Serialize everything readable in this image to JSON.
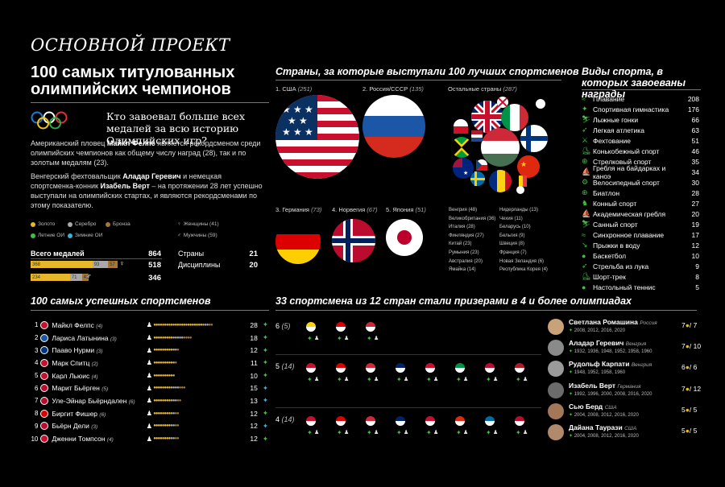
{
  "project": "ОСНОВНОЙ ПРОЕКТ",
  "title": "100 самых титулованных олимпийских чемпионов",
  "question": "Кто завоевал больше всех медалей за всю историю Олимпийских игр?",
  "intro": {
    "p1_a": "Американский пловец ",
    "p1_b": "Майкл Фелпс",
    "p1_c": " является рекордсменом среди олимпийских чемпионов как общему числу наград (28), так и по золотым медалям (23).",
    "p2_a": "Венгерский фехтовальщик ",
    "p2_b": "Аладар Геревич",
    "p2_c": " и немецкая спортсменка-конник ",
    "p2_d": "Изабель Верт",
    "p2_e": " – на протяжении 28 лет успешно выступали на олимпийских стартах, и являются рекордсменами по этому показателю."
  },
  "legend": {
    "gold": "Золото",
    "silver": "Серебро",
    "bronze": "Бронза",
    "women": "Женщины (41)",
    "summer": "Летние ОИ",
    "winter": "Зимние ОИ",
    "men": "Мужчины (59)"
  },
  "stats": {
    "total_label": "Всего медалей",
    "total": "864",
    "bar1": {
      "gold": "368",
      "silver": "93",
      "bronze": "57",
      "gold_n": 368,
      "silver_n": 93,
      "bronze_n": 57
    },
    "bar1_total": "518",
    "bar2": {
      "gold": "234",
      "silver": "71",
      "bronze": "41",
      "gold_n": 234,
      "silver_n": 71,
      "bronze_n": 41
    },
    "bar2_total": "346",
    "countries_label": "Страны",
    "countries": "21",
    "disciplines_label": "Дисциплины",
    "disciplines": "20"
  },
  "countries_section": {
    "title": "Страны,  за которые выступали 100 лучших спортсменов",
    "usa": "1. США",
    "usa_n": "(251)",
    "russia": "2. Россия/СССР",
    "russia_n": "(135)",
    "others": "Остальные страны",
    "others_n": "(287)",
    "germany": "3. Германия",
    "germany_n": "(73)",
    "norway": "4. Норвегия",
    "norway_n": "(67)",
    "japan": "5. Япония",
    "japan_n": "(51)",
    "list1": [
      "Венгрия (48)",
      "Великобритания (36)",
      "Италия (28)",
      "Финляндия (27)",
      "Китай (23)",
      "Румыния (23)",
      "Австралия (20)",
      "Ямайка (14)"
    ],
    "list2": [
      "Нидерланды (13)",
      "Чехия (11)",
      "Беларусь (10)",
      "Бельгия (9)",
      "Швеция (8)",
      "Франция (7)",
      "Новая Зеландия (6)",
      "Республика Корея (4)"
    ]
  },
  "sports_section": {
    "title": "Виды спорта, в которых завоеваны награды",
    "items": [
      {
        "name": "Плавание",
        "count": "208",
        "icon": "swimming-icon"
      },
      {
        "name": "Спортивная гимнастика",
        "count": "176",
        "icon": "gymnastics-icon"
      },
      {
        "name": "Лыжные гонки",
        "count": "66",
        "icon": "skiing-icon"
      },
      {
        "name": "Легкая атлетика",
        "count": "63",
        "icon": "athletics-icon"
      },
      {
        "name": "Фехтование",
        "count": "51",
        "icon": "fencing-icon"
      },
      {
        "name": "Конькобежный спорт",
        "count": "46",
        "icon": "skating-icon"
      },
      {
        "name": "Стрелковый спорт",
        "count": "35",
        "icon": "shooting-icon"
      },
      {
        "name": "Гребля на байдарках и каноэ",
        "count": "34",
        "icon": "canoe-icon"
      },
      {
        "name": "Велосипедный спорт",
        "count": "30",
        "icon": "cycling-icon"
      },
      {
        "name": "Биатлон",
        "count": "28",
        "icon": "biathlon-icon"
      },
      {
        "name": "Конный спорт",
        "count": "27",
        "icon": "equestrian-icon"
      },
      {
        "name": "Академическая гребля",
        "count": "20",
        "icon": "rowing-icon"
      },
      {
        "name": "Санный спорт",
        "count": "19",
        "icon": "luge-icon"
      },
      {
        "name": "Синхронное плавание",
        "count": "17",
        "icon": "synchro-icon"
      },
      {
        "name": "Прыжки в воду",
        "count": "12",
        "icon": "diving-icon"
      },
      {
        "name": "Баскетбол",
        "count": "10",
        "icon": "basketball-icon"
      },
      {
        "name": "Стрельба из лука",
        "count": "9",
        "icon": "archery-icon"
      },
      {
        "name": "Шорт-трек",
        "count": "8",
        "icon": "short-track-icon"
      },
      {
        "name": "Настольный теннис",
        "count": "5",
        "icon": "table-tennis-icon"
      }
    ]
  },
  "athletes_section": {
    "title": "100 самых успешных спортсменов",
    "items": [
      {
        "num": "1",
        "name": "Майкл Фелпс",
        "olympics": "(4)",
        "medals": "28",
        "gold": 23
      },
      {
        "num": "2",
        "name": "Лариса Латынина",
        "olympics": "(3)",
        "medals": "18",
        "gold": 9
      },
      {
        "num": "3",
        "name": "Пааво Нурми",
        "olympics": "(3)",
        "medals": "12",
        "gold": 9
      },
      {
        "num": "4",
        "name": "Марк Спитц",
        "olympics": "(2)",
        "medals": "11",
        "gold": 9
      },
      {
        "num": "5",
        "name": "Карл Льюис",
        "olympics": "(4)",
        "medals": "10",
        "gold": 9
      },
      {
        "num": "6",
        "name": "Марит Бьёрген",
        "olympics": "(5)",
        "medals": "15",
        "gold": 8
      },
      {
        "num": "7",
        "name": "Уле-Эйнар Бьёрндален",
        "olympics": "(6)",
        "medals": "13",
        "gold": 8
      },
      {
        "num": "8",
        "name": "Биргит Фишер",
        "olympics": "(6)",
        "medals": "12",
        "gold": 8
      },
      {
        "num": "9",
        "name": "Бьёрн Дели",
        "olympics": "(3)",
        "medals": "12",
        "gold": 8
      },
      {
        "num": "10",
        "name": "Дженни Томпсон",
        "olympics": "(4)",
        "medals": "12",
        "gold": 8
      }
    ]
  },
  "multi_section": {
    "title": "33 спортсмена из 12 стран стали призерами в 4 и более олимпиадах",
    "row6": "6",
    "row6_n": "(5)",
    "row5": "5",
    "row5_n": "(14)",
    "row4": "4",
    "row4_n": "(14)"
  },
  "cards": [
    {
      "name": "Светлана Ромашина",
      "country": "Россия",
      "years": "2008, 2012, 2016, 2020",
      "score": "7",
      "total": "7"
    },
    {
      "name": "Аладар Геревич",
      "country": "Венгрия",
      "years": "1932, 1936, 1948, 1952, 1958, 1960",
      "score": "7",
      "total": "10"
    },
    {
      "name": "Рудольф Карпати",
      "country": "Венгрия",
      "years": "1948, 1952, 1958, 1960",
      "score": "6",
      "total": "6"
    },
    {
      "name": "Изабель Верт",
      "country": "Германия",
      "years": "1992, 1996, 2000, 2008, 2016, 2020",
      "score": "7",
      "total": "12"
    },
    {
      "name": "Сью Берд",
      "country": "США",
      "years": "2004, 2008, 2012, 2016, 2020",
      "score": "5",
      "total": "5"
    },
    {
      "name": "Дайана Таурази",
      "country": "США",
      "years": "2004, 2008, 2012, 2016, 2020",
      "score": "5",
      "total": "5"
    }
  ],
  "colors": {
    "gold": "#e6b62b",
    "silver": "#a8a8a8",
    "bronze": "#a3773a",
    "summer": "#3fc23f",
    "winter": "#3ab0d6"
  }
}
